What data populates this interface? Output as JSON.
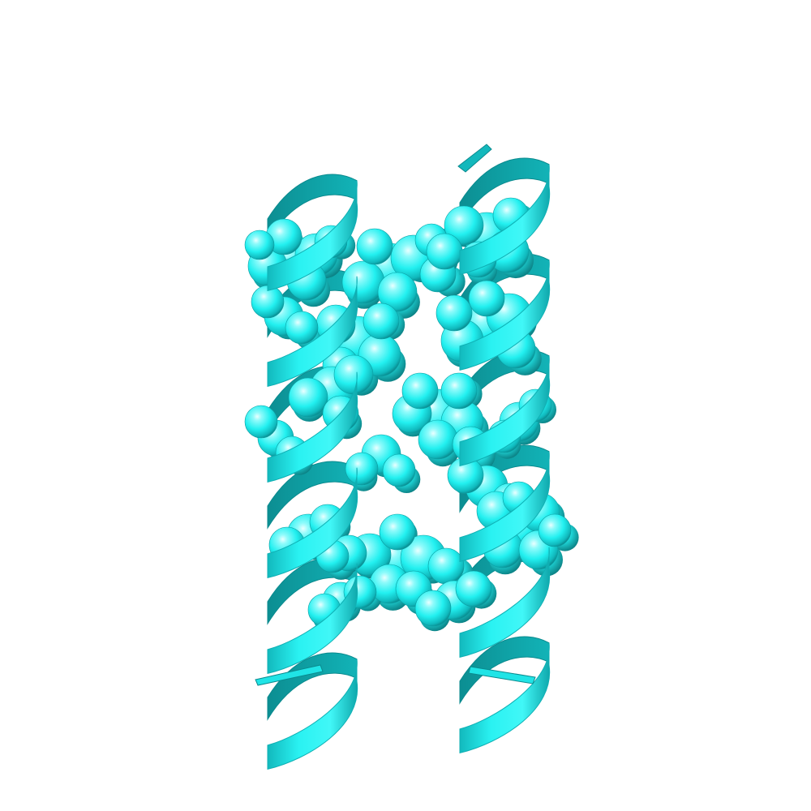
{
  "image": {
    "subject": "protein-structure-render",
    "style": "cartoon-helices-with-spacefill-side-chains",
    "background_color": "#ffffff",
    "colors": {
      "base": "#22f0f0",
      "shadow": "#0a8f93",
      "deep": "#066a6e",
      "highlight": "#e8ffff"
    }
  }
}
